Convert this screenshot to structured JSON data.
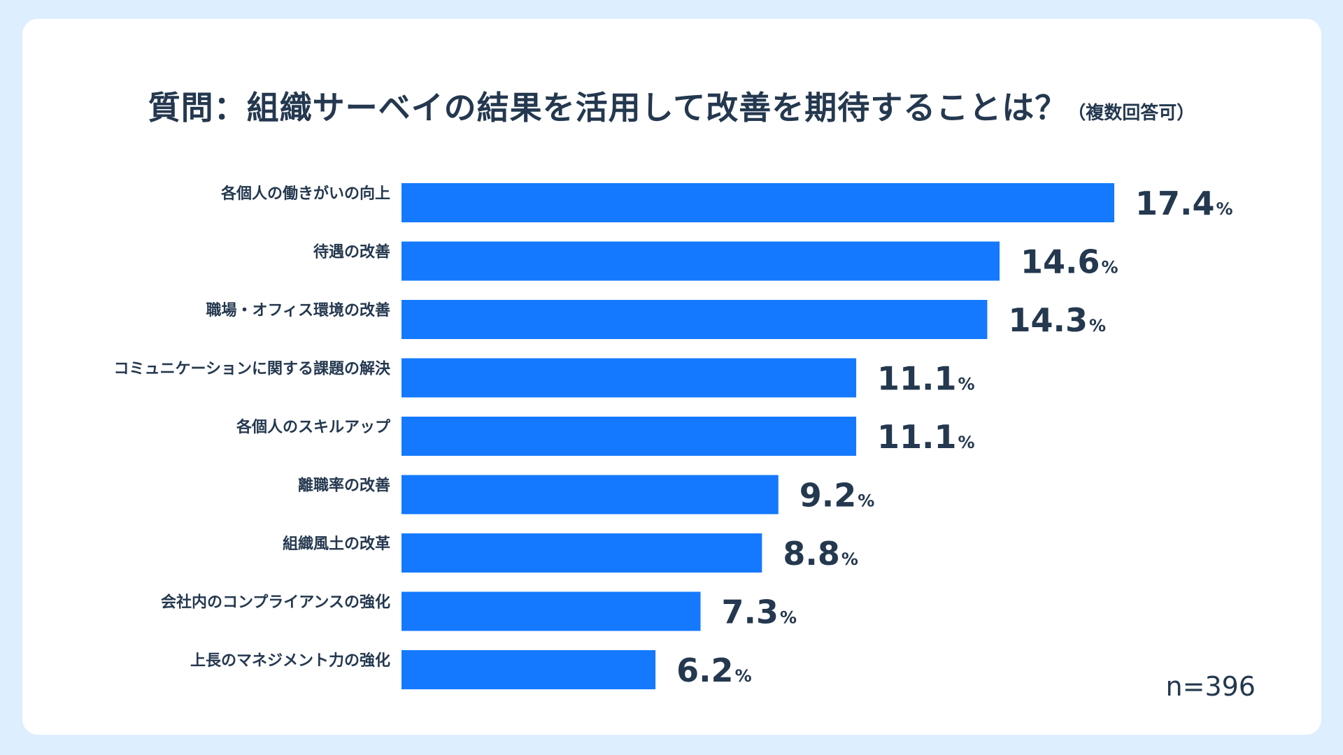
{
  "chart_data": {
    "type": "bar",
    "orientation": "horizontal",
    "title": "質問：組織サーベイの結果を活用して改善を期待することは？",
    "subtitle": "（複数回答可）",
    "categories": [
      "各個人の働きがいの向上",
      "待遇の改善",
      "職場・オフィス環境の改善",
      "コミュニケーションに関する課題の解決",
      "各個人のスキルアップ",
      "離職率の改善",
      "組織風土の改革",
      "会社内のコンプライアンスの強化",
      "上長のマネジメント力の強化"
    ],
    "values": [
      17.4,
      14.6,
      14.3,
      11.1,
      11.1,
      9.2,
      8.8,
      7.3,
      6.2
    ],
    "value_labels": [
      "17.4",
      "14.6",
      "14.3",
      "11.1",
      "11.1",
      "9.2",
      "8.8",
      "7.3",
      "6.2"
    ],
    "unit": "%",
    "sample_size": "n=396",
    "xlim": [
      0,
      17.4
    ],
    "grid": false,
    "legend": "none"
  },
  "colors": {
    "bar": "#1479ff",
    "text": "#24384f",
    "background": "#ddeeff",
    "card": "#ffffff"
  }
}
